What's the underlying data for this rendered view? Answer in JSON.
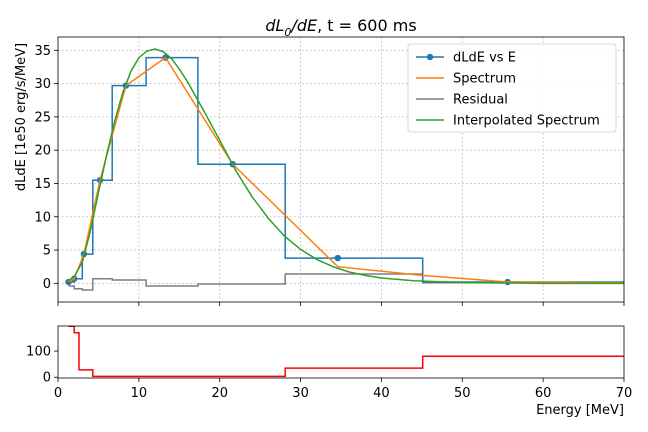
{
  "chart_data": [
    {
      "type": "line",
      "title": "dL₀/dE, t = 600 ms",
      "title_math": "dL",
      "title_sub": "0",
      "title_math2": "/dE",
      "title_rest": ", t = 600 ms",
      "xlabel": "",
      "ylabel": "dLdE [1e50 erg/s/MeV]",
      "xlim": [
        0,
        70
      ],
      "ylim": [
        -2.8,
        37
      ],
      "yticks": [
        0,
        5,
        10,
        15,
        20,
        25,
        30,
        35
      ],
      "xticks": [
        0,
        10,
        20,
        30,
        40,
        50,
        60,
        70
      ],
      "grid": true,
      "legend_position": "top-right",
      "series": [
        {
          "name": "dLdE vs E",
          "color": "#1f77b4",
          "style": "step-mid with markers",
          "edges": [
            0.9,
            2.0,
            3.0,
            4.3,
            6.7,
            10.9,
            17.3,
            28.1,
            45.1,
            70
          ],
          "x": [
            1.3,
            2.0,
            3.2,
            5.2,
            8.4,
            13.3,
            21.6,
            34.6,
            55.6
          ],
          "y": [
            0.2,
            0.7,
            4.4,
            15.5,
            29.7,
            33.9,
            17.9,
            3.8,
            0.2
          ],
          "markers": [
            1.3,
            2.0,
            3.2,
            5.2,
            8.4,
            13.3,
            21.6,
            34.6,
            55.6
          ]
        },
        {
          "name": "Spectrum",
          "color": "#ff7f0e",
          "x": [
            1.3,
            2.0,
            3.2,
            5.2,
            8.4,
            13.3,
            21.6,
            34.6,
            45.0,
            55.6,
            70
          ],
          "y": [
            0.2,
            0.7,
            4.4,
            15.5,
            29.7,
            33.9,
            17.9,
            2.5,
            1.2,
            0.2,
            0.1
          ]
        },
        {
          "name": "Residual",
          "color": "#7f7f7f",
          "x": [
            1.3,
            2.0,
            2.0,
            3.0,
            3.0,
            4.3,
            4.3,
            6.7,
            6.7,
            10.9,
            10.9,
            17.3,
            17.3,
            28.1,
            28.1,
            45.1,
            45.1,
            70
          ],
          "y": [
            -0.4,
            -0.4,
            -0.8,
            -0.8,
            -1.0,
            -1.0,
            0.7,
            0.7,
            0.5,
            0.5,
            -0.4,
            -0.4,
            -0.1,
            -0.1,
            1.4,
            1.4,
            0.1,
            0.1
          ]
        },
        {
          "name": "Interpolated Spectrum",
          "color": "#2ca02c",
          "x": [
            1,
            2,
            3,
            4,
            5,
            6,
            7,
            8,
            9,
            10,
            11,
            12,
            13,
            14,
            15,
            16,
            18,
            20,
            22,
            24,
            26,
            28,
            30,
            32,
            34,
            36,
            38,
            40,
            44,
            48,
            52,
            56,
            60,
            65,
            70
          ],
          "y": [
            0.2,
            1.0,
            3.2,
            7.8,
            13.6,
            19.2,
            24.3,
            28.6,
            31.8,
            33.9,
            34.9,
            35.2,
            34.8,
            33.8,
            32.2,
            30.3,
            26.0,
            21.5,
            16.9,
            13.0,
            9.8,
            7.1,
            5.1,
            3.6,
            2.5,
            1.7,
            1.2,
            0.8,
            0.4,
            0.2,
            0.1,
            0.05,
            0.0,
            0.0,
            0.0
          ]
        }
      ]
    },
    {
      "type": "line",
      "xlabel": "Energy [MeV]",
      "ylabel": "",
      "xlim": [
        0,
        70
      ],
      "ylim": [
        -3,
        196
      ],
      "yticks": [
        0,
        100
      ],
      "xticks": [
        0,
        10,
        20,
        30,
        40,
        50,
        60,
        70
      ],
      "grid": false,
      "series": [
        {
          "name": "",
          "color": "#ff0000",
          "x": [
            1.3,
            2.0,
            2.0,
            2.6,
            2.6,
            4.3,
            4.3,
            28.1,
            28.1,
            45.1,
            45.1,
            70
          ],
          "y": [
            195,
            195,
            170,
            170,
            28,
            28,
            3,
            3,
            35,
            35,
            80,
            80
          ]
        }
      ]
    }
  ]
}
